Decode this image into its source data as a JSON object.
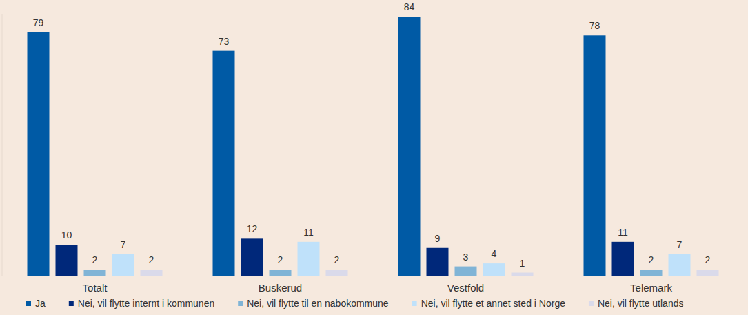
{
  "chart_data": {
    "type": "bar",
    "categories": [
      "Totalt",
      "Buskerud",
      "Vestfold",
      "Telemark"
    ],
    "series": [
      {
        "name": "Ja",
        "color": "#005aa5",
        "values": [
          79,
          73,
          84,
          78
        ]
      },
      {
        "name": "Nei, vil flytte internt i kommunen",
        "color": "#00287a",
        "values": [
          10,
          12,
          9,
          11
        ]
      },
      {
        "name": "Nei, vil flytte til en nabokommune",
        "color": "#80b4d6",
        "values": [
          2,
          2,
          3,
          2
        ]
      },
      {
        "name": "Nei, vil flytte et annet sted i Norge",
        "color": "#bfe1fa",
        "values": [
          7,
          11,
          4,
          7
        ]
      },
      {
        "name": "Nei, vil flytte utlands",
        "color": "#dadaea",
        "values": [
          2,
          2,
          1,
          2
        ]
      }
    ],
    "ylim": [
      0,
      85
    ],
    "grid": false,
    "legend": "bottom",
    "data_labels": true,
    "tick_labels": "x"
  }
}
